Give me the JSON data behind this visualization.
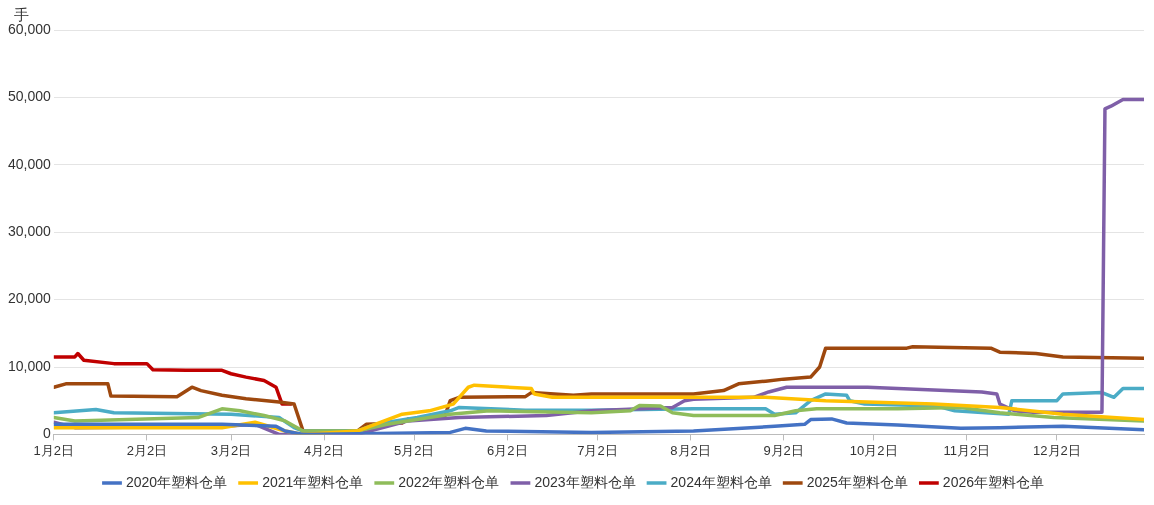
{
  "chart_data": {
    "type": "line",
    "ylabel": "手",
    "ylim": [
      0,
      60000
    ],
    "yticks": [
      0,
      {
        "value": 10000,
        "label": "10,000"
      },
      {
        "value": 20000,
        "label": "20,000"
      },
      {
        "value": 30000,
        "label": "30,000"
      },
      {
        "value": 40000,
        "label": "40,000"
      },
      {
        "value": 50000,
        "label": "50,000"
      },
      {
        "value": 60000,
        "label": "60,000"
      }
    ],
    "xlim": [
      "--01-02",
      "--12-31"
    ],
    "xticks": [
      {
        "value": "--01-02",
        "label": "1月2日"
      },
      {
        "value": "--02-02",
        "label": "2月2日"
      },
      {
        "value": "--03-02",
        "label": "3月2日"
      },
      {
        "value": "--04-02",
        "label": "4月2日"
      },
      {
        "value": "--05-02",
        "label": "5月2日"
      },
      {
        "value": "--06-02",
        "label": "6月2日"
      },
      {
        "value": "--07-02",
        "label": "7月2日"
      },
      {
        "value": "--08-02",
        "label": "8月2日"
      },
      {
        "value": "--09-02",
        "label": "9月2日"
      },
      {
        "value": "--10-02",
        "label": "10月2日"
      },
      {
        "value": "--11-02",
        "label": "11月2日"
      },
      {
        "value": "--12-02",
        "label": "12月2日"
      }
    ],
    "grid": "y",
    "legend": "bottom",
    "marker": "none",
    "line_style": "solid",
    "series": [
      {
        "name": "2020年塑料仓单",
        "color": "#4472c4",
        "x": [
          "--01-02",
          "--02-27",
          "--03-17",
          "--03-20",
          "--03-26",
          "--05-14",
          "--05-19",
          "--05-26",
          "--06-30",
          "--08-03",
          "--08-30",
          "--09-09",
          "--09-11",
          "--09-18",
          "--09-23",
          "--10-10",
          "--10-31",
          "--11-13",
          "--12-04",
          "--12-31"
        ],
        "values": [
          1500,
          1500,
          1200,
          500,
          0,
          300,
          900,
          500,
          300,
          500,
          1200,
          1500,
          2200,
          2300,
          1700,
          1400,
          900,
          1000,
          1200,
          700
        ]
      },
      {
        "name": "2021年塑料仓单",
        "color": "#ffc000",
        "x": [
          "--01-02",
          "--02-27",
          "--03-10",
          "--03-20",
          "--03-26",
          "--04-13",
          "--04-28",
          "--05-07",
          "--05-15",
          "--05-20",
          "--05-22",
          "--06-10",
          "--06-11",
          "--06-17",
          "--08-03",
          "--08-27",
          "--09-16",
          "--10-22",
          "--11-13",
          "--12-04",
          "--12-31"
        ],
        "values": [
          1000,
          1000,
          1800,
          500,
          0,
          500,
          3000,
          3500,
          4500,
          7000,
          7300,
          6800,
          6000,
          5500,
          5500,
          5500,
          5000,
          4500,
          4000,
          3000,
          2200
        ]
      },
      {
        "name": "2022年塑料仓单",
        "color": "#8fbc5a",
        "x": [
          "--01-02",
          "--01-09",
          "--02-19",
          "--02-27",
          "--03-05",
          "--03-13",
          "--03-20",
          "--03-26",
          "--04-13",
          "--04-23",
          "--05-07",
          "--05-14",
          "--05-27",
          "--06-30",
          "--07-13",
          "--07-16",
          "--07-23",
          "--07-27",
          "--08-03",
          "--08-30",
          "--09-06",
          "--09-13",
          "--10-10",
          "--10-31",
          "--11-13",
          "--12-01",
          "--12-31"
        ],
        "values": [
          2500,
          2000,
          2500,
          3800,
          3500,
          2800,
          2000,
          500,
          500,
          1500,
          2500,
          3000,
          3500,
          3200,
          3500,
          4300,
          4200,
          3200,
          2800,
          2800,
          3500,
          3800,
          3800,
          4000,
          3200,
          2500,
          2000
        ]
      },
      {
        "name": "2023年塑料仓单",
        "color": "#7f5fa8",
        "x": [
          "--01-02",
          "--01-09",
          "--02-28",
          "--03-10",
          "--03-18",
          "--04-13",
          "--04-30",
          "--05-17",
          "--06-15",
          "--06-30",
          "--07-27",
          "--07-31",
          "--08-03",
          "--08-23",
          "--08-28",
          "--09-03",
          "--09-30",
          "--11-07",
          "--11-12",
          "--11-13",
          "--11-18",
          "--11-24",
          "--12-17",
          "--12-18",
          "--12-20",
          "--12-24",
          "--12-31"
        ],
        "values": [
          1800,
          1000,
          1200,
          1500,
          0,
          0,
          2000,
          2500,
          2800,
          3500,
          4000,
          5000,
          5200,
          5500,
          6300,
          7000,
          7000,
          6300,
          6000,
          4500,
          3500,
          3300,
          3300,
          48300,
          48700,
          49700,
          49700
        ]
      },
      {
        "name": "2024年塑料仓单",
        "color": "#4bacc6",
        "x": [
          "--01-02",
          "--01-16",
          "--01-22",
          "--03-02",
          "--03-18",
          "--03-23",
          "--03-26",
          "--04-13",
          "--04-19",
          "--05-03",
          "--05-14",
          "--05-17",
          "--06-08",
          "--06-30",
          "--08-03",
          "--08-27",
          "--08-30",
          "--09-06",
          "--09-11",
          "--09-16",
          "--09-23",
          "--09-24",
          "--09-29",
          "--10-23",
          "--10-29",
          "--11-16",
          "--11-17",
          "--12-02",
          "--12-04",
          "--12-17",
          "--12-21",
          "--12-24",
          "--12-31"
        ],
        "values": [
          3200,
          3700,
          3200,
          3000,
          2500,
          1000,
          500,
          500,
          1500,
          2500,
          3500,
          4000,
          3600,
          3600,
          3800,
          3800,
          3000,
          3200,
          5000,
          6000,
          5800,
          5000,
          4500,
          4200,
          3500,
          3000,
          5000,
          5000,
          6000,
          6200,
          5500,
          6800,
          6800
        ]
      },
      {
        "name": "2025年塑料仓单",
        "color": "#9e480e",
        "x": [
          "--01-02",
          "--01-06",
          "--01-20",
          "--01-21",
          "--02-12",
          "--02-17",
          "--02-20",
          "--02-27",
          "--03-07",
          "--03-18",
          "--03-23",
          "--03-26",
          "--04-13",
          "--04-16",
          "--04-28",
          "--04-30",
          "--05-12",
          "--05-14",
          "--05-17",
          "--06-08",
          "--06-10",
          "--06-24",
          "--06-30",
          "--07-20",
          "--08-03",
          "--08-13",
          "--08-18",
          "--08-27",
          "--09-02",
          "--09-11",
          "--09-14",
          "--09-16",
          "--10-13",
          "--10-15",
          "--11-10",
          "--11-13",
          "--11-25",
          "--12-04",
          "--12-31"
        ],
        "values": [
          7000,
          7500,
          7500,
          5700,
          5600,
          7000,
          6500,
          5800,
          5300,
          4800,
          4500,
          500,
          500,
          1500,
          1700,
          2300,
          2500,
          5000,
          5500,
          5600,
          6200,
          5800,
          6000,
          6000,
          6000,
          6500,
          7500,
          7900,
          8200,
          8500,
          10000,
          12800,
          12800,
          13000,
          12800,
          12200,
          12000,
          11500,
          11300
        ]
      },
      {
        "name": "2026年塑料仓单",
        "color": "#c00000",
        "x": [
          "--01-02",
          "--01-09",
          "--01-10",
          "--01-12",
          "--01-22",
          "--02-02",
          "--02-04",
          "--02-15",
          "--02-27",
          "--03-02",
          "--03-07",
          "--03-13",
          "--03-17",
          "--03-19",
          "--03-22"
        ],
        "values": [
          11500,
          11500,
          12000,
          11000,
          10500,
          10500,
          9600,
          9500,
          9500,
          9000,
          8500,
          8000,
          7000,
          4500,
          4500
        ]
      }
    ]
  }
}
